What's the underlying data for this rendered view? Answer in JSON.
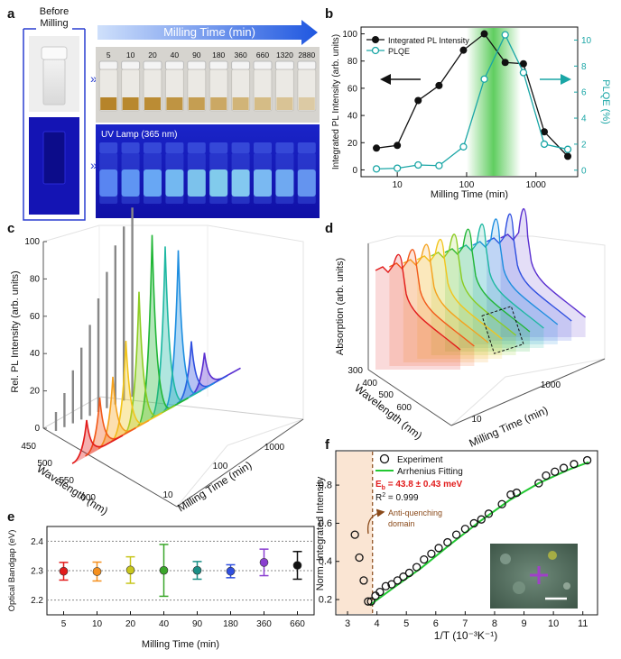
{
  "panel_letters": [
    "a",
    "b",
    "c",
    "d",
    "e",
    "f"
  ],
  "panel_a": {
    "before_label_1": "Before",
    "before_label_2": "Milling",
    "milling_time_header": "Milling Time (min)",
    "times": [
      "5",
      "10",
      "20",
      "40",
      "90",
      "180",
      "360",
      "660",
      "1320",
      "2880"
    ],
    "uv_label": "UV Lamp (365 nm)"
  },
  "chart_data": [
    {
      "panel": "b",
      "type": "line",
      "xscale": "log",
      "xlabel": "Milling Time (min)",
      "ylabel": "Integrated PL Intensity (arb. units)",
      "y2label": "PLQE (%)",
      "xlim": [
        3,
        4000
      ],
      "ylim": [
        -5,
        105
      ],
      "y2lim": [
        -0.5,
        11
      ],
      "x_ticks": [
        "10",
        "100",
        "1000"
      ],
      "y_ticks": [
        "0",
        "20",
        "40",
        "60",
        "80",
        "100"
      ],
      "y2_ticks": [
        "0",
        "2",
        "4",
        "6",
        "8",
        "10"
      ],
      "legend_position": "top-left",
      "series": [
        {
          "name": "Integrated PL Intensity",
          "axis": "left",
          "color": "#111111",
          "x": [
            5,
            10,
            20,
            40,
            90,
            180,
            360,
            660,
            1320,
            2880
          ],
          "y": [
            16,
            18,
            51,
            62,
            88,
            100,
            79,
            78,
            28,
            10
          ]
        },
        {
          "name": "PLQE",
          "axis": "right",
          "color": "#1aa6a6",
          "x": [
            5,
            10,
            20,
            40,
            90,
            180,
            360,
            660,
            1320,
            2880
          ],
          "y": [
            0.1,
            0.15,
            0.4,
            0.35,
            1.8,
            7,
            10.4,
            7.5,
            2,
            1.6
          ]
        }
      ],
      "highlight_range": [
        100,
        600
      ]
    },
    {
      "panel": "c",
      "type": "area",
      "xlabel": "Wavelength (nm)",
      "ylabel": "Rel. PL Intensity (arb. units)",
      "zlabel": "Milling Time (min)",
      "wavelength_ticks": [
        "450",
        "500",
        "550",
        "600"
      ],
      "time_ticks": [
        "10",
        "100",
        "1000"
      ],
      "y_ticks": [
        "0",
        "20",
        "40",
        "60",
        "80",
        "100"
      ],
      "spectra_peak_intensity": [
        20,
        28,
        35,
        50,
        72,
        98,
        88,
        82,
        30,
        20
      ],
      "spectra_colors": [
        "#e21b1b",
        "#f25a1a",
        "#f5a21e",
        "#f2c51c",
        "#8ccc22",
        "#21b637",
        "#1eb8a2",
        "#1e8ee0",
        "#2f4fe0",
        "#5a2fd0"
      ],
      "excitation_line_heights": [
        10,
        18,
        28,
        38,
        48,
        60,
        72,
        84,
        92,
        100
      ]
    },
    {
      "panel": "d",
      "type": "area",
      "xlabel": "Wavelength (nm)",
      "ylabel": "Absorption (arb. units)",
      "zlabel": "Milling Time (min)",
      "wavelength_ticks": [
        "300",
        "400",
        "500",
        "600"
      ],
      "time_ticks": [
        "10",
        "1000"
      ],
      "spectra_colors": [
        "#e21b1b",
        "#f25a1a",
        "#f5a21e",
        "#f2c51c",
        "#8ccc22",
        "#21b637",
        "#1eb8a2",
        "#1e8ee0",
        "#2f4fe0",
        "#5a2fd0"
      ]
    },
    {
      "panel": "e",
      "type": "scatter",
      "xlabel": "Milling Time (min)",
      "ylabel": "Optical Bandgap (eV)",
      "ylim": [
        2.15,
        2.45
      ],
      "y_ticks": [
        "2.2",
        "2.3",
        "2.4"
      ],
      "categories": [
        "5",
        "10",
        "20",
        "40",
        "90",
        "180",
        "360",
        "660"
      ],
      "values": [
        2.298,
        2.297,
        2.302,
        2.301,
        2.301,
        2.298,
        2.328,
        2.318
      ],
      "errors": [
        0.03,
        0.032,
        0.045,
        0.088,
        0.03,
        0.022,
        0.045,
        0.047
      ],
      "colors": [
        "#e21b1b",
        "#f5901e",
        "#c8c61e",
        "#3aa62a",
        "#1a8f86",
        "#2f4fe0",
        "#8a3fd0",
        "#111111"
      ]
    },
    {
      "panel": "f",
      "type": "scatter",
      "xlabel": "1/T  (10⁻³K⁻¹)",
      "ylabel": "Norm. Integrated Intensity",
      "xlim": [
        2.6,
        11.5
      ],
      "ylim": [
        0.12,
        0.98
      ],
      "x_ticks": [
        "3",
        "4",
        "5",
        "6",
        "7",
        "8",
        "9",
        "10",
        "11"
      ],
      "y_ticks": [
        "0.2",
        "0.4",
        "0.6",
        "0.8"
      ],
      "legend_position": "top-left",
      "series": [
        {
          "name": "Experiment",
          "style": "open-circle",
          "color": "#111111",
          "x": [
            3.25,
            3.4,
            3.55,
            3.7,
            3.8,
            3.95,
            4.1,
            4.3,
            4.5,
            4.7,
            4.9,
            5.1,
            5.35,
            5.6,
            5.85,
            6.1,
            6.4,
            6.7,
            7.0,
            7.3,
            7.55,
            7.8,
            8.25,
            8.55,
            8.75,
            9.5,
            9.75,
            10.05,
            10.35,
            10.7,
            11.15
          ],
          "y": [
            0.54,
            0.42,
            0.3,
            0.19,
            0.19,
            0.22,
            0.24,
            0.27,
            0.28,
            0.3,
            0.32,
            0.34,
            0.37,
            0.41,
            0.44,
            0.47,
            0.5,
            0.54,
            0.57,
            0.6,
            0.62,
            0.65,
            0.7,
            0.75,
            0.76,
            0.81,
            0.85,
            0.87,
            0.89,
            0.91,
            0.93
          ]
        },
        {
          "name": "Arrhenius Fitting",
          "style": "line",
          "color": "#22c832",
          "x": [
            3.75,
            4.5,
            5.5,
            6.5,
            7.5,
            8.5,
            9.5,
            10.5,
            11.2
          ],
          "y": [
            0.17,
            0.255,
            0.365,
            0.49,
            0.61,
            0.72,
            0.81,
            0.88,
            0.92
          ]
        }
      ],
      "eb_label": "E",
      "eb_sub": "b",
      "eb_value": " = 43.8 ± 0.43 meV",
      "r2_label": "R",
      "r2_sup": "2",
      "r2_value": " = 0.999",
      "annotation_1": "Anti-quenching",
      "annotation_2": "domain",
      "shaded_range": [
        2.6,
        3.85
      ]
    }
  ]
}
